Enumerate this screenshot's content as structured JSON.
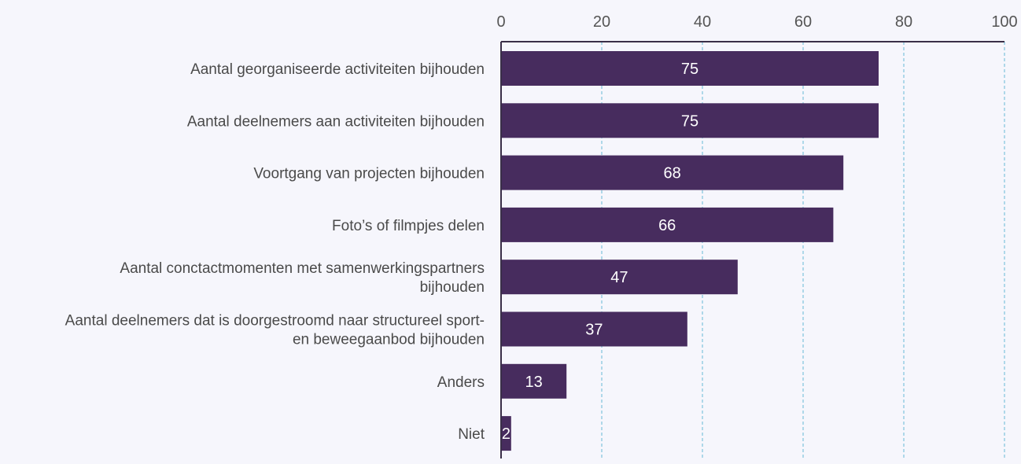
{
  "chart_data": {
    "type": "bar",
    "orientation": "horizontal",
    "categories": [
      [
        "Aantal georganiseerde activiteiten bijhouden"
      ],
      [
        "Aantal deelnemers aan activiteiten bijhouden"
      ],
      [
        "Voortgang van projecten bijhouden"
      ],
      [
        "Foto’s of filmpjes delen"
      ],
      [
        "Aantal conctactmomenten met samenwerkingspartners",
        "bijhouden"
      ],
      [
        "Aantal deelnemers dat is doorgestroomd naar structureel sport-",
        "en beweegaanbod bijhouden"
      ],
      [
        "Anders"
      ],
      [
        "Niet"
      ]
    ],
    "values": [
      75,
      75,
      68,
      66,
      47,
      37,
      13,
      2
    ],
    "data_labels": [
      "75",
      "75",
      "68",
      "66",
      "47",
      "37",
      "13",
      "2"
    ],
    "xlim": [
      0,
      100
    ],
    "x_ticks": [
      "0",
      "20",
      "40",
      "60",
      "80",
      "100"
    ],
    "x_axis_position": "top",
    "grid": "vertical dashed",
    "bar_color": "#472c5e",
    "grid_color": "#7ec3dd",
    "axis_color": "#3a2f48"
  }
}
